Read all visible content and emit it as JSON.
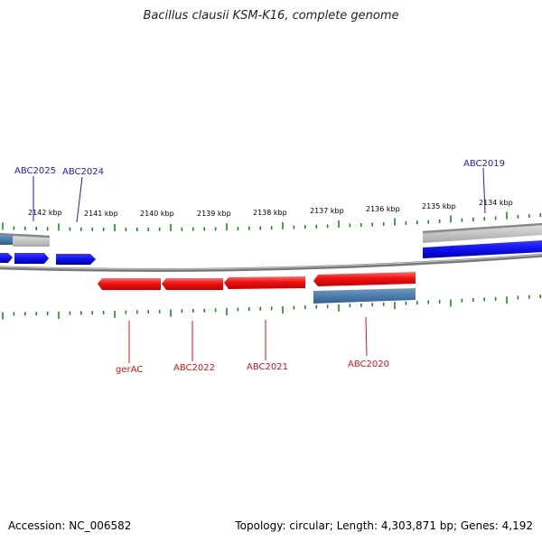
{
  "title": "Bacillus clausii KSM-K16, complete genome",
  "footer": {
    "accession": "Accession: NC_006582",
    "topology": "Topology: circular; Length: 4,303,871 bp; Genes: 4,192"
  },
  "colors": {
    "forward_gene": "#1010ee",
    "reverse_gene": "#ee1111",
    "gene_label_forward": "#1a1acc",
    "gene_label_reverse": "#dd1111",
    "backbone": "#888888",
    "tick": "#1e8a1e",
    "operon_steel": "#4a7bab",
    "operon_gray": "#b4b4b4"
  },
  "scale": {
    "ticks_kbp": [
      {
        "label": "2142 kbp"
      },
      {
        "label": "2141 kbp"
      },
      {
        "label": "2140 kbp"
      },
      {
        "label": "2139 kbp"
      },
      {
        "label": "2138 kbp"
      },
      {
        "label": "2137 kbp"
      },
      {
        "label": "2136 kbp"
      },
      {
        "label": "2135 kbp"
      },
      {
        "label": "2134 kbp"
      }
    ]
  },
  "genes": {
    "forward": [
      {
        "label": "ABC2025"
      },
      {
        "label": "ABC2024"
      },
      {
        "label": "ABC2019"
      }
    ],
    "reverse": [
      {
        "label": "gerAC"
      },
      {
        "label": "ABC2022"
      },
      {
        "label": "ABC2021"
      },
      {
        "label": "ABC2020"
      }
    ]
  }
}
